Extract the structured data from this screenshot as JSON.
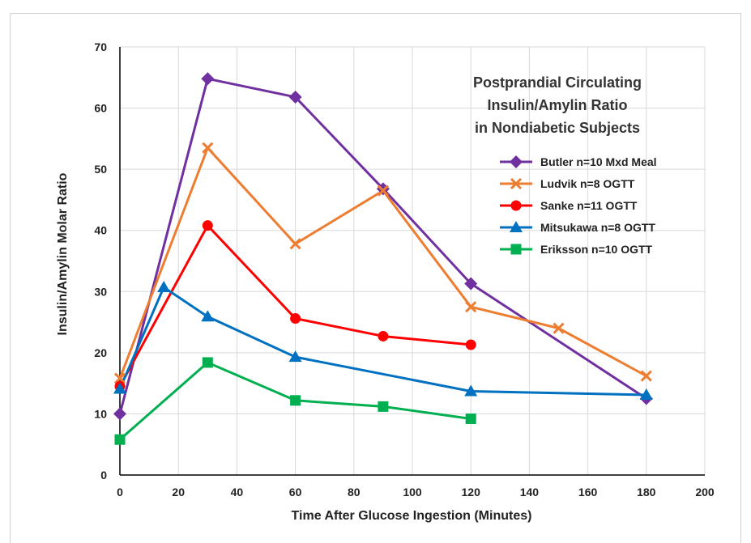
{
  "chart_data": {
    "type": "line",
    "title": "",
    "xlabel": "Time After Glucose Ingestion (Minutes)",
    "ylabel": "Insulin/Amylin Molar Ratio",
    "xlim": [
      0,
      200
    ],
    "ylim": [
      0,
      70
    ],
    "x_ticks": [
      0,
      20,
      40,
      60,
      80,
      100,
      120,
      140,
      160,
      180,
      200
    ],
    "y_ticks": [
      0,
      10,
      20,
      30,
      40,
      50,
      60,
      70
    ],
    "grid": true,
    "legend_position": "right",
    "annotation": [
      "Postprandial Circulating",
      "Insulin/Amylin Ratio",
      "in Nondiabetic Subjects"
    ],
    "series": [
      {
        "name": "Butler n=10 Mxd Meal",
        "color": "#7030a0",
        "marker": "diamond",
        "points": [
          [
            0,
            10
          ],
          [
            30,
            64.8
          ],
          [
            60,
            61.8
          ],
          [
            90,
            46.8
          ],
          [
            120,
            31.3
          ],
          [
            180,
            12.5
          ]
        ]
      },
      {
        "name": "Ludvik n=8 OGTT",
        "color": "#ed7d31",
        "marker": "x",
        "points": [
          [
            0,
            15.8
          ],
          [
            30,
            53.5
          ],
          [
            60,
            37.8
          ],
          [
            90,
            46.5
          ],
          [
            120,
            27.5
          ],
          [
            150,
            24
          ],
          [
            180,
            16.2
          ]
        ]
      },
      {
        "name": "Sanke n=11 OGTT",
        "color": "#ff0000",
        "marker": "circle",
        "points": [
          [
            0,
            14.5
          ],
          [
            30,
            40.8
          ],
          [
            60,
            25.6
          ],
          [
            90,
            22.7
          ],
          [
            120,
            21.3
          ]
        ]
      },
      {
        "name": "Mitsukawa n=8 OGTT",
        "color": "#0070c0",
        "marker": "triangle",
        "points": [
          [
            0,
            14.1
          ],
          [
            15,
            30.7
          ],
          [
            30,
            25.9
          ],
          [
            60,
            19.3
          ],
          [
            120,
            13.7
          ],
          [
            180,
            13.1
          ]
        ]
      },
      {
        "name": "Eriksson n=10 OGTT",
        "color": "#00b050",
        "marker": "square",
        "points": [
          [
            0,
            5.8
          ],
          [
            30,
            18.4
          ],
          [
            60,
            12.2
          ],
          [
            90,
            11.2
          ],
          [
            120,
            9.2
          ]
        ]
      }
    ]
  }
}
